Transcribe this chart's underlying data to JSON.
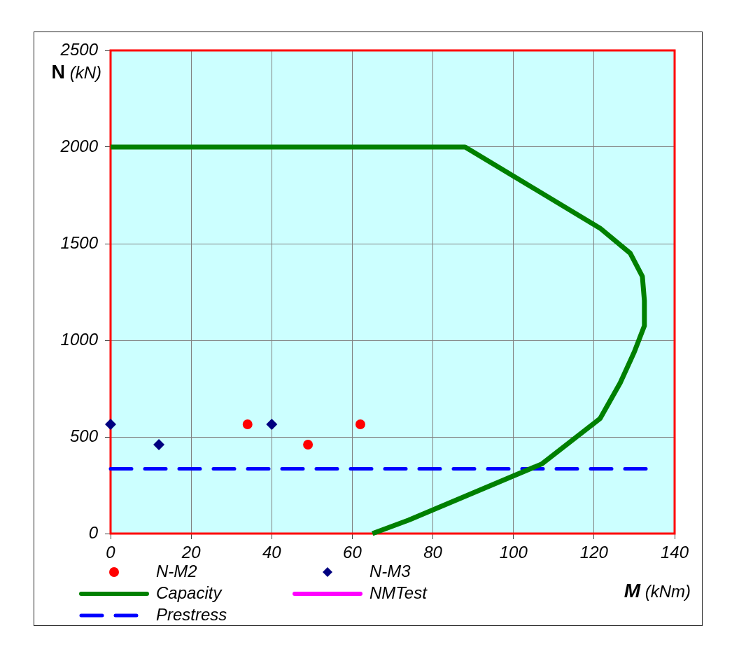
{
  "chart_data": {
    "type": "scatter",
    "xlabel": "M (kNm)",
    "ylabel": "N (kN)",
    "xlim": [
      0,
      140
    ],
    "ylim": [
      0,
      2500
    ],
    "xticks": [
      0,
      20,
      40,
      60,
      80,
      100,
      120,
      140
    ],
    "yticks": [
      0,
      500,
      1000,
      1500,
      2000,
      2500
    ],
    "grid": true,
    "legend": "bottom",
    "series": [
      {
        "name": "N-M2",
        "marker": "circle",
        "color": "#ff0000",
        "x": [
          34,
          49,
          62
        ],
        "values": [
          565,
          460,
          565
        ]
      },
      {
        "name": "N-M3",
        "marker": "diamond",
        "color": "#000080",
        "x": [
          0,
          12,
          40
        ],
        "values": [
          565,
          460,
          565
        ]
      },
      {
        "name": "Capacity",
        "type": "line",
        "color": "#008000",
        "x": [
          0,
          88,
          121.5,
          129,
          132,
          132.5,
          132.5,
          130,
          126.5,
          121.5,
          107,
          74,
          65
        ],
        "values": [
          2000,
          2000,
          1580,
          1450,
          1330,
          1205,
          1075,
          940,
          780,
          595,
          360,
          70,
          0
        ]
      },
      {
        "name": "NMTest",
        "type": "line",
        "color": "#ff00ff"
      },
      {
        "name": "Prestress",
        "type": "line",
        "line_style": "dashed",
        "color": "#0000ff",
        "x": [
          0,
          133
        ],
        "values": [
          335,
          335
        ]
      }
    ]
  }
}
